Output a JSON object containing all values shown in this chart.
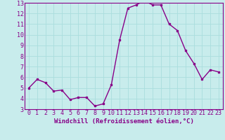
{
  "x": [
    0,
    1,
    2,
    3,
    4,
    5,
    6,
    7,
    8,
    9,
    10,
    11,
    12,
    13,
    14,
    15,
    16,
    17,
    18,
    19,
    20,
    21,
    22,
    23
  ],
  "y": [
    5.0,
    5.8,
    5.5,
    4.7,
    4.8,
    3.9,
    4.1,
    4.1,
    3.3,
    3.5,
    5.3,
    9.5,
    12.5,
    12.8,
    13.2,
    12.8,
    12.8,
    11.0,
    10.4,
    8.5,
    7.3,
    5.8,
    6.7,
    6.5
  ],
  "line_color": "#880088",
  "marker": "s",
  "marker_size": 2.0,
  "bg_color": "#c8ecec",
  "grid_color": "#aadddd",
  "xlabel": "Windchill (Refroidissement éolien,°C)",
  "ylim": [
    3,
    13
  ],
  "xlim_min": -0.5,
  "xlim_max": 23.5,
  "yticks": [
    3,
    4,
    5,
    6,
    7,
    8,
    9,
    10,
    11,
    12,
    13
  ],
  "xticks": [
    0,
    1,
    2,
    3,
    4,
    5,
    6,
    7,
    8,
    9,
    10,
    11,
    12,
    13,
    14,
    15,
    16,
    17,
    18,
    19,
    20,
    21,
    22,
    23
  ],
  "xlabel_fontsize": 6.5,
  "tick_fontsize": 6.0,
  "line_width": 1.0
}
